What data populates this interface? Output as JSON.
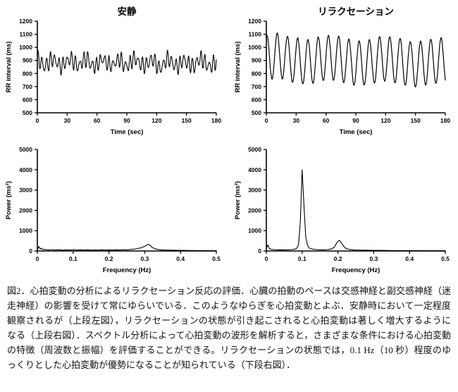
{
  "figure": {
    "caption": "図2．心拍変動の分析によるリラクセーション反応の評価．心臓の拍動のペースは交感神経と副交感神経（迷走神経）の影響を受けて常にゆらいでいる．このようなゆらぎを心拍変動とよぶ．安静時において一定程度観察されるが（上段左図），リラクセーションの状態が引き起こされると心拍変動は著しく増大するようになる（上段右図）．スペクトル分析によって心拍変動の波形を解析すると，さまざまな条件における心拍変動の特徴（周波数と振幅）を評価することができる。リラクセーションの状態では，0.1 Hz（10 秒）程度のゆっくりとした心拍変動が優勢になることが知られている（下段右図）．"
  },
  "chart_data": [
    {
      "id": "rest-rr-interval",
      "type": "line",
      "title": "安静",
      "xlabel": "Time (sec)",
      "ylabel": "RR interval (ms)",
      "xlim": [
        0,
        180
      ],
      "ylim": [
        500,
        1200
      ],
      "xticks": [
        0,
        30,
        60,
        90,
        120,
        150,
        180
      ],
      "xtick_labels": [
        "0",
        "30",
        "60",
        "90",
        "120",
        "150",
        "180"
      ],
      "yticks": [
        500,
        600,
        700,
        800,
        900,
        1000,
        1100,
        1200
      ],
      "ytick_labels": [
        "500",
        "600",
        "700",
        "800",
        "900",
        "1000",
        "1100",
        "1200"
      ],
      "grid": false,
      "legend": "none",
      "line_width": 1.1,
      "series_gen": {
        "description": "Resting RR-interval trace: rapid small-amplitude heart-rate variability fluctuating roughly between 750 and 1010 ms around a mean near 885 ms",
        "baseline": 885,
        "drift": 0,
        "components": [
          {
            "amp": 48,
            "period": 4.2,
            "phase": 0.6
          },
          {
            "amp": 26,
            "period": 16.5,
            "phase": 1.8
          },
          {
            "amp": 18,
            "period": 3.1,
            "phase": 0.2
          }
        ],
        "noise": 16,
        "seed": 11,
        "n": 540,
        "tmax": 180
      }
    },
    {
      "id": "relaxation-rr-interval",
      "type": "line",
      "title": "リラクセーション",
      "xlabel": "Time (sec)",
      "ylabel": "RR interval (ms)",
      "xlim": [
        0,
        180
      ],
      "ylim": [
        500,
        1200
      ],
      "xticks": [
        0,
        30,
        60,
        90,
        120,
        150,
        180
      ],
      "xtick_labels": [
        "0",
        "30",
        "60",
        "90",
        "120",
        "150",
        "180"
      ],
      "yticks": [
        500,
        600,
        700,
        800,
        900,
        1000,
        1100,
        1200
      ],
      "ytick_labels": [
        "500",
        "600",
        "700",
        "800",
        "900",
        "1000",
        "1100",
        "1200"
      ],
      "grid": false,
      "legend": "none",
      "line_width": 1.2,
      "series_gen": {
        "description": "Relaxation RR-interval trace: large regular ~0.1 Hz oscillations swinging between roughly 700 and 1100 ms",
        "baseline": 915,
        "drift": -0.18,
        "components": [
          {
            "amp": 172,
            "period": 10.3,
            "phase": 1.2
          },
          {
            "amp": 18,
            "period": 55,
            "phase": 0.4
          }
        ],
        "noise": 7,
        "seed": 23,
        "n": 540,
        "tmax": 180
      }
    },
    {
      "id": "rest-power-spectrum",
      "type": "line",
      "title": "",
      "xlabel": "Frequency (Hz)",
      "ylabel": "Power (ms²)",
      "xlim": [
        0,
        0.5
      ],
      "ylim": [
        0,
        5000
      ],
      "xticks": [
        0,
        0.1,
        0.2,
        0.3,
        0.4,
        0.5
      ],
      "xtick_labels": [
        "0",
        "0.1",
        "0.2",
        "0.3",
        "0.4",
        "0.5"
      ],
      "yticks": [
        0,
        1000,
        2000,
        3000,
        4000,
        5000
      ],
      "ytick_labels": [
        "0",
        "1000",
        "2000",
        "3000",
        "4000",
        "5000"
      ],
      "grid": false,
      "legend": "none",
      "line_width": 1.1,
      "points": [
        [
          0,
          40
        ],
        [
          0.004,
          230
        ],
        [
          0.008,
          90
        ],
        [
          0.012,
          140
        ],
        [
          0.016,
          60
        ],
        [
          0.02,
          80
        ],
        [
          0.03,
          55
        ],
        [
          0.04,
          70
        ],
        [
          0.05,
          45
        ],
        [
          0.06,
          65
        ],
        [
          0.07,
          40
        ],
        [
          0.08,
          60
        ],
        [
          0.09,
          45
        ],
        [
          0.1,
          70
        ],
        [
          0.11,
          40
        ],
        [
          0.12,
          60
        ],
        [
          0.13,
          45
        ],
        [
          0.14,
          55
        ],
        [
          0.15,
          40
        ],
        [
          0.16,
          55
        ],
        [
          0.17,
          45
        ],
        [
          0.18,
          60
        ],
        [
          0.19,
          45
        ],
        [
          0.2,
          55
        ],
        [
          0.21,
          45
        ],
        [
          0.22,
          60
        ],
        [
          0.23,
          50
        ],
        [
          0.24,
          65
        ],
        [
          0.25,
          55
        ],
        [
          0.26,
          75
        ],
        [
          0.27,
          90
        ],
        [
          0.28,
          120
        ],
        [
          0.29,
          160
        ],
        [
          0.3,
          230
        ],
        [
          0.31,
          330
        ],
        [
          0.315,
          280
        ],
        [
          0.32,
          180
        ],
        [
          0.33,
          100
        ],
        [
          0.34,
          65
        ],
        [
          0.35,
          50
        ],
        [
          0.37,
          40
        ],
        [
          0.4,
          30
        ],
        [
          0.43,
          25
        ],
        [
          0.46,
          20
        ],
        [
          0.5,
          15
        ]
      ]
    },
    {
      "id": "relaxation-power-spectrum",
      "type": "line",
      "title": "",
      "xlabel": "Frequency (Hz)",
      "ylabel": "Power (ms²)",
      "xlim": [
        0,
        0.5
      ],
      "ylim": [
        0,
        5000
      ],
      "xticks": [
        0,
        0.1,
        0.2,
        0.3,
        0.4,
        0.5
      ],
      "xtick_labels": [
        "0",
        "0.1",
        "0.2",
        "0.3",
        "0.4",
        "0.5"
      ],
      "yticks": [
        0,
        1000,
        2000,
        3000,
        4000,
        5000
      ],
      "ytick_labels": [
        "0",
        "1000",
        "2000",
        "3000",
        "4000",
        "5000"
      ],
      "grid": false,
      "legend": "none",
      "line_width": 1.1,
      "points": [
        [
          0,
          120
        ],
        [
          0.004,
          300
        ],
        [
          0.008,
          140
        ],
        [
          0.012,
          90
        ],
        [
          0.02,
          70
        ],
        [
          0.03,
          55
        ],
        [
          0.04,
          60
        ],
        [
          0.05,
          55
        ],
        [
          0.06,
          60
        ],
        [
          0.07,
          70
        ],
        [
          0.08,
          90
        ],
        [
          0.085,
          140
        ],
        [
          0.09,
          300
        ],
        [
          0.095,
          1500
        ],
        [
          0.1,
          4000
        ],
        [
          0.105,
          2300
        ],
        [
          0.11,
          700
        ],
        [
          0.115,
          280
        ],
        [
          0.12,
          140
        ],
        [
          0.13,
          90
        ],
        [
          0.14,
          70
        ],
        [
          0.15,
          60
        ],
        [
          0.16,
          60
        ],
        [
          0.17,
          70
        ],
        [
          0.18,
          90
        ],
        [
          0.19,
          180
        ],
        [
          0.195,
          350
        ],
        [
          0.2,
          480
        ],
        [
          0.205,
          520
        ],
        [
          0.21,
          380
        ],
        [
          0.22,
          150
        ],
        [
          0.23,
          85
        ],
        [
          0.24,
          60
        ],
        [
          0.25,
          45
        ],
        [
          0.27,
          40
        ],
        [
          0.3,
          35
        ],
        [
          0.33,
          28
        ],
        [
          0.36,
          22
        ],
        [
          0.4,
          20
        ],
        [
          0.45,
          16
        ],
        [
          0.5,
          14
        ]
      ]
    }
  ]
}
